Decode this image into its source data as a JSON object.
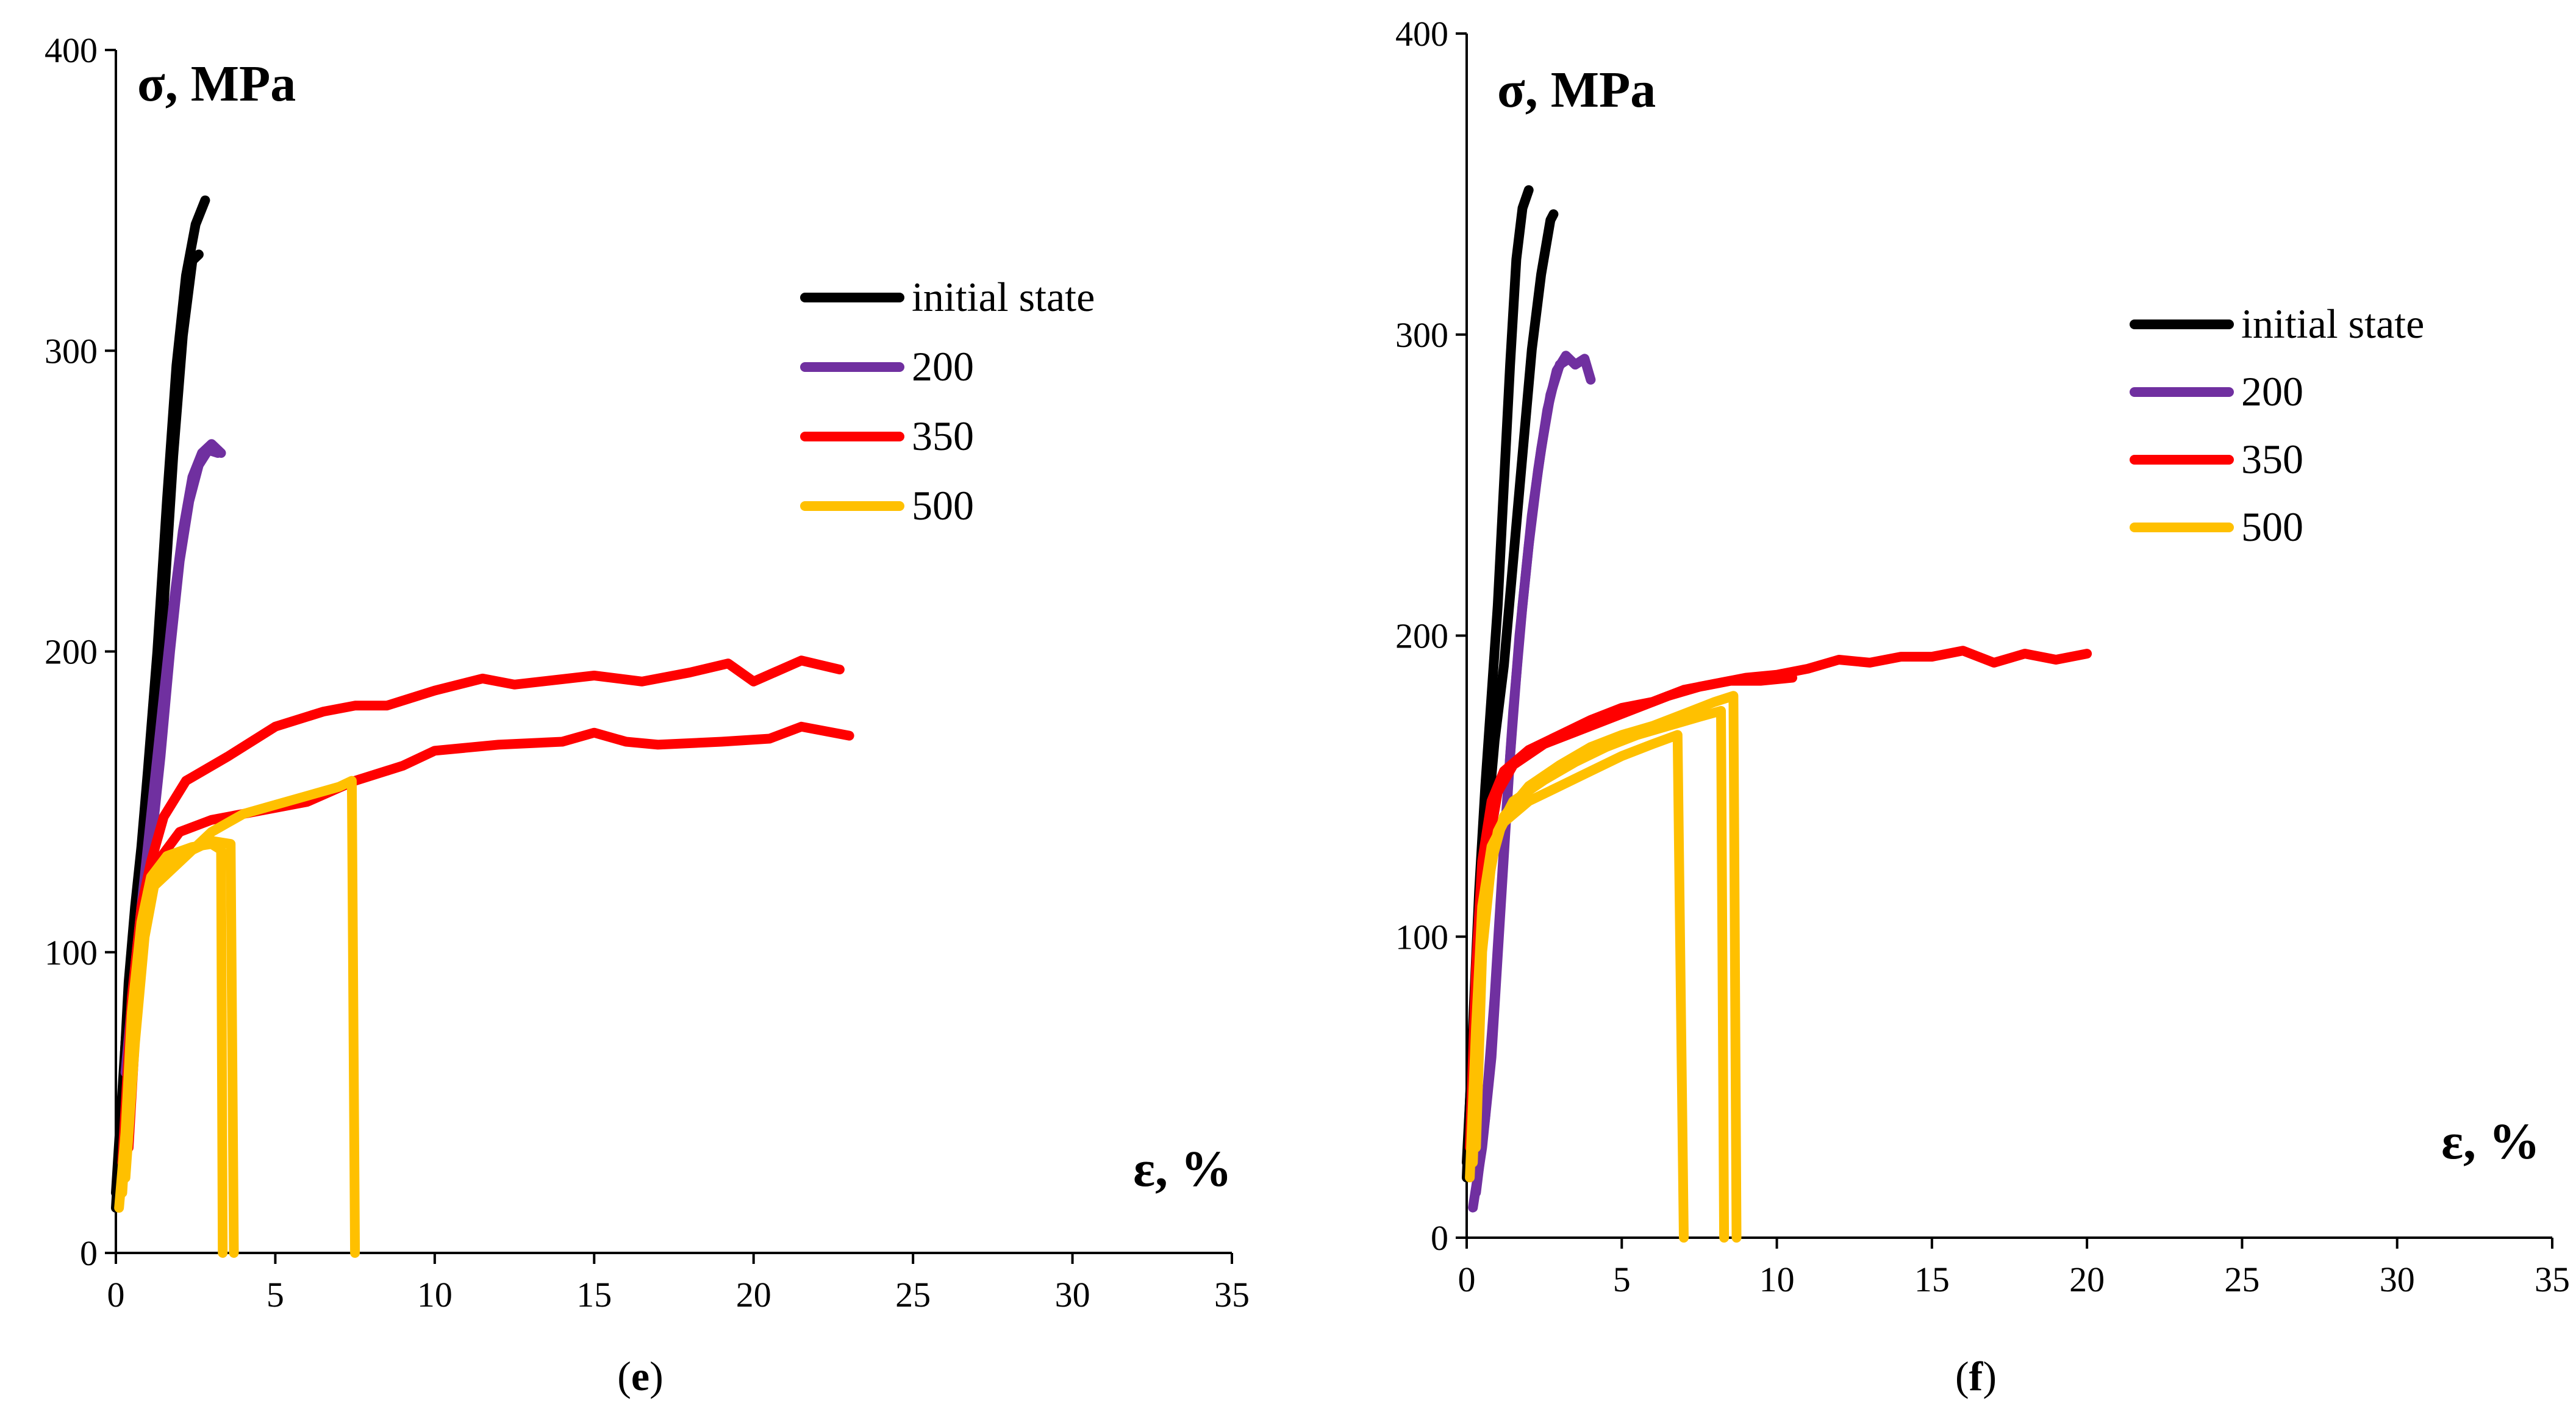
{
  "colors": {
    "initial state": "#000000",
    "200": "#7030A0",
    "350": "#FF0000",
    "500": "#FFC000"
  },
  "chart_data": [
    {
      "type": "line",
      "panel_label": "e",
      "ylabel": "σ, MPa",
      "xlabel": "ε, %",
      "xlim": [
        0,
        35
      ],
      "ylim": [
        0,
        400
      ],
      "x_ticks": [
        0,
        5,
        10,
        15,
        20,
        25,
        30,
        35
      ],
      "y_ticks": [
        0,
        100,
        200,
        300,
        400
      ],
      "grid": false,
      "legend_position": "upper-right",
      "series": [
        {
          "name": "initial state",
          "curves": [
            [
              [
                0,
                15
              ],
              [
                0.2,
                50
              ],
              [
                0.4,
                90
              ],
              [
                0.6,
                115
              ],
              [
                0.8,
                135
              ],
              [
                1,
                160
              ],
              [
                1.3,
                200
              ],
              [
                1.6,
                250
              ],
              [
                1.9,
                295
              ],
              [
                2.2,
                325
              ],
              [
                2.5,
                342
              ],
              [
                2.8,
                350
              ]
            ],
            [
              [
                0,
                20
              ],
              [
                0.3,
                70
              ],
              [
                0.6,
                110
              ],
              [
                0.9,
                140
              ],
              [
                1.2,
                175
              ],
              [
                1.5,
                215
              ],
              [
                1.8,
                265
              ],
              [
                2.1,
                305
              ],
              [
                2.4,
                330
              ],
              [
                2.6,
                332
              ]
            ]
          ]
        },
        {
          "name": "200",
          "curves": [
            [
              [
                0.3,
                60
              ],
              [
                0.6,
                95
              ],
              [
                0.9,
                125
              ],
              [
                1.2,
                155
              ],
              [
                1.5,
                185
              ],
              [
                1.8,
                215
              ],
              [
                2.1,
                240
              ],
              [
                2.4,
                258
              ],
              [
                2.7,
                266
              ],
              [
                3,
                269
              ],
              [
                3.3,
                266
              ]
            ],
            [
              [
                0.5,
                70
              ],
              [
                0.8,
                105
              ],
              [
                1.1,
                135
              ],
              [
                1.4,
                165
              ],
              [
                1.7,
                200
              ],
              [
                2,
                230
              ],
              [
                2.3,
                250
              ],
              [
                2.6,
                262
              ],
              [
                2.9,
                267
              ],
              [
                3.2,
                266
              ]
            ]
          ]
        },
        {
          "name": "350",
          "curves": [
            [
              [
                0.2,
                30
              ],
              [
                0.5,
                85
              ],
              [
                0.8,
                115
              ],
              [
                1.1,
                130
              ],
              [
                1.5,
                145
              ],
              [
                2.2,
                157
              ],
              [
                3.5,
                165
              ],
              [
                5,
                175
              ],
              [
                6.5,
                180
              ],
              [
                7.5,
                182
              ],
              [
                8.5,
                182
              ],
              [
                10,
                187
              ],
              [
                11.5,
                191
              ],
              [
                12.5,
                189
              ],
              [
                15,
                192
              ],
              [
                16.5,
                190
              ],
              [
                18,
                193
              ],
              [
                19.2,
                196
              ],
              [
                20,
                190
              ],
              [
                21.5,
                197
              ],
              [
                22.7,
                194
              ]
            ],
            [
              [
                0.4,
                35
              ],
              [
                0.7,
                90
              ],
              [
                1,
                118
              ],
              [
                1.3,
                130
              ],
              [
                2,
                140
              ],
              [
                3,
                144
              ],
              [
                4,
                146
              ],
              [
                6,
                150
              ],
              [
                7.5,
                157
              ],
              [
                9,
                162
              ],
              [
                10,
                167
              ],
              [
                12,
                169
              ],
              [
                14,
                170
              ],
              [
                15,
                173
              ],
              [
                16,
                170
              ],
              [
                17,
                169
              ],
              [
                19,
                170
              ],
              [
                20.5,
                171
              ],
              [
                21.5,
                175
              ],
              [
                23,
                172
              ]
            ]
          ]
        },
        {
          "name": "500",
          "curves": [
            [
              [
                0.1,
                15
              ],
              [
                0.3,
                40
              ],
              [
                0.5,
                80
              ],
              [
                0.8,
                110
              ],
              [
                1.1,
                125
              ],
              [
                1.6,
                132
              ],
              [
                2.4,
                135
              ],
              [
                3,
                136
              ],
              [
                3.3,
                134
              ],
              [
                3.35,
                0
              ]
            ],
            [
              [
                0.2,
                20
              ],
              [
                0.4,
                55
              ],
              [
                0.7,
                95
              ],
              [
                1,
                120
              ],
              [
                1.5,
                128
              ],
              [
                2.2,
                133
              ],
              [
                3,
                137
              ],
              [
                3.6,
                136
              ],
              [
                3.7,
                0
              ]
            ],
            [
              [
                0.3,
                25
              ],
              [
                0.6,
                70
              ],
              [
                0.9,
                105
              ],
              [
                1.2,
                122
              ],
              [
                2,
                130
              ],
              [
                3,
                140
              ],
              [
                4,
                146
              ],
              [
                5,
                149
              ],
              [
                6,
                152
              ],
              [
                7,
                155
              ],
              [
                7.4,
                157
              ],
              [
                7.5,
                0
              ]
            ]
          ]
        }
      ]
    },
    {
      "type": "line",
      "panel_label": "f",
      "ylabel": "σ, MPa",
      "xlabel": "ε, %",
      "xlim": [
        0,
        35
      ],
      "ylim": [
        0,
        400
      ],
      "x_ticks": [
        0,
        5,
        10,
        15,
        20,
        25,
        30,
        35
      ],
      "y_ticks": [
        0,
        100,
        200,
        300,
        400
      ],
      "grid": false,
      "legend_position": "upper-right",
      "series": [
        {
          "name": "initial state",
          "curves": [
            [
              [
                0,
                20
              ],
              [
                0.2,
                70
              ],
              [
                0.4,
                115
              ],
              [
                0.6,
                150
              ],
              [
                0.8,
                180
              ],
              [
                1,
                210
              ],
              [
                1.2,
                250
              ],
              [
                1.4,
                290
              ],
              [
                1.6,
                325
              ],
              [
                1.8,
                342
              ],
              [
                2,
                348
              ]
            ],
            [
              [
                0,
                25
              ],
              [
                0.3,
                85
              ],
              [
                0.6,
                130
              ],
              [
                0.9,
                165
              ],
              [
                1.2,
                190
              ],
              [
                1.5,
                225
              ],
              [
                1.8,
                260
              ],
              [
                2.1,
                295
              ],
              [
                2.4,
                320
              ],
              [
                2.7,
                338
              ],
              [
                2.8,
                340
              ]
            ]
          ]
        },
        {
          "name": "200",
          "curves": [
            [
              [
                0.2,
                10
              ],
              [
                0.5,
                30
              ],
              [
                0.8,
                60
              ],
              [
                1.1,
                110
              ],
              [
                1.4,
                160
              ],
              [
                1.7,
                200
              ],
              [
                2,
                230
              ],
              [
                2.3,
                255
              ],
              [
                2.6,
                275
              ],
              [
                2.9,
                288
              ],
              [
                3.2,
                293
              ],
              [
                3.5,
                290
              ],
              [
                3.8,
                292
              ],
              [
                4,
                285
              ]
            ],
            [
              [
                0.3,
                15
              ],
              [
                0.6,
                40
              ],
              [
                0.9,
                80
              ],
              [
                1.2,
                130
              ],
              [
                1.5,
                175
              ],
              [
                1.8,
                210
              ],
              [
                2.1,
                240
              ],
              [
                2.4,
                262
              ],
              [
                2.7,
                280
              ],
              [
                3,
                290
              ],
              [
                3.3,
                292
              ]
            ]
          ]
        },
        {
          "name": "350",
          "curves": [
            [
              [
                0.1,
                30
              ],
              [
                0.3,
                90
              ],
              [
                0.5,
                125
              ],
              [
                0.8,
                145
              ],
              [
                1.2,
                155
              ],
              [
                2,
                162
              ],
              [
                3,
                167
              ],
              [
                4,
                172
              ],
              [
                5,
                176
              ],
              [
                6,
                178
              ],
              [
                7,
                182
              ],
              [
                8,
                184
              ],
              [
                9,
                186
              ],
              [
                10,
                187
              ],
              [
                11,
                189
              ],
              [
                12,
                192
              ],
              [
                13,
                191
              ],
              [
                14,
                193
              ],
              [
                15,
                193
              ],
              [
                16,
                195
              ],
              [
                17,
                191
              ],
              [
                18,
                194
              ],
              [
                19,
                192
              ],
              [
                20,
                194
              ]
            ],
            [
              [
                0.2,
                35
              ],
              [
                0.4,
                95
              ],
              [
                0.7,
                130
              ],
              [
                1,
                148
              ],
              [
                1.5,
                157
              ],
              [
                2.5,
                164
              ],
              [
                3.5,
                168
              ],
              [
                4.5,
                172
              ],
              [
                5.5,
                176
              ],
              [
                6.5,
                180
              ],
              [
                7.5,
                183
              ],
              [
                8.5,
                185
              ],
              [
                9.5,
                185
              ],
              [
                10.5,
                186
              ]
            ]
          ]
        },
        {
          "name": "500",
          "curves": [
            [
              [
                0.1,
                20
              ],
              [
                0.3,
                70
              ],
              [
                0.5,
                110
              ],
              [
                0.8,
                130
              ],
              [
                1.2,
                138
              ],
              [
                2,
                145
              ],
              [
                3,
                150
              ],
              [
                4,
                155
              ],
              [
                5,
                160
              ],
              [
                6,
                164
              ],
              [
                6.8,
                167
              ],
              [
                7,
                0
              ]
            ],
            [
              [
                0.2,
                25
              ],
              [
                0.4,
                85
              ],
              [
                0.7,
                118
              ],
              [
                1,
                135
              ],
              [
                1.5,
                145
              ],
              [
                2.5,
                152
              ],
              [
                3.5,
                158
              ],
              [
                4.5,
                163
              ],
              [
                5.5,
                167
              ],
              [
                6.5,
                170
              ],
              [
                7.5,
                173
              ],
              [
                8.2,
                175
              ],
              [
                8.3,
                0
              ]
            ],
            [
              [
                0.3,
                30
              ],
              [
                0.5,
                95
              ],
              [
                0.8,
                125
              ],
              [
                1.2,
                140
              ],
              [
                2,
                150
              ],
              [
                3,
                157
              ],
              [
                4,
                163
              ],
              [
                5,
                167
              ],
              [
                6,
                170
              ],
              [
                7,
                174
              ],
              [
                8,
                178
              ],
              [
                8.6,
                180
              ],
              [
                8.7,
                0
              ]
            ]
          ]
        }
      ]
    }
  ]
}
